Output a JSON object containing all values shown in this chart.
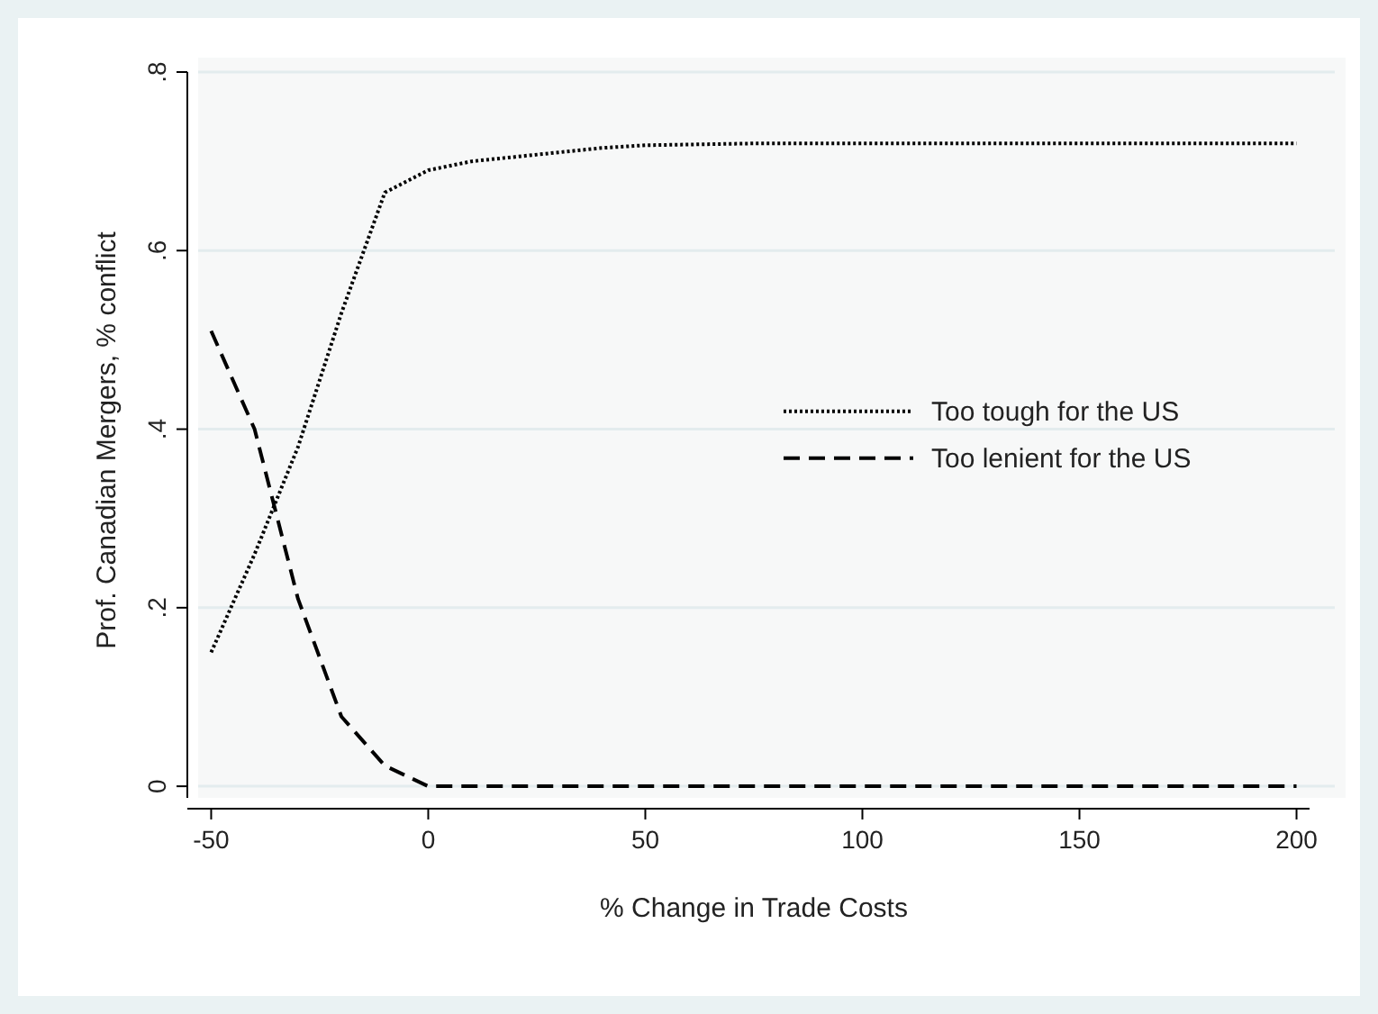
{
  "chart_data": {
    "type": "line",
    "xlabel": "% Change in Trade Costs",
    "ylabel": "Prof. Canadian Mergers, % conflict",
    "x": [
      -50,
      -40,
      -30,
      -20,
      -10,
      0,
      10,
      20,
      30,
      40,
      50,
      75,
      100,
      125,
      150,
      175,
      200
    ],
    "series": [
      {
        "name": "Too tough for the US",
        "color": "#000000",
        "line_style": "dotted",
        "values": [
          0.15,
          0.26,
          0.38,
          0.53,
          0.665,
          0.69,
          0.7,
          0.705,
          0.71,
          0.715,
          0.718,
          0.72,
          0.72,
          0.72,
          0.72,
          0.72,
          0.72
        ]
      },
      {
        "name": "Too lenient for the US",
        "color": "#000000",
        "line_style": "dashed",
        "values": [
          0.51,
          0.4,
          0.21,
          0.078,
          0.023,
          0,
          0,
          0,
          0,
          0,
          0,
          0,
          0,
          0,
          0,
          0,
          0
        ]
      }
    ],
    "xlim": [
      -53,
      203
    ],
    "ylim": [
      -0.013,
      0.8
    ],
    "xticks": [
      -50,
      0,
      50,
      100,
      150,
      200
    ],
    "yticks": [
      {
        "value": 0,
        "label": "0"
      },
      {
        "value": 0.2,
        "label": ".2"
      },
      {
        "value": 0.4,
        "label": ".4"
      },
      {
        "value": 0.6,
        "label": ".6"
      },
      {
        "value": 0.8,
        "label": ".8"
      }
    ],
    "grid": "y",
    "legend": "right"
  }
}
